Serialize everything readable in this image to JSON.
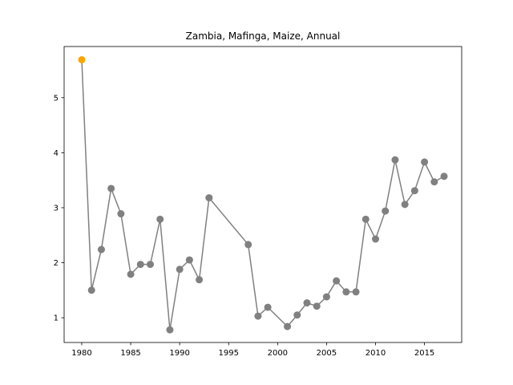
{
  "chart_data": {
    "type": "line",
    "title": "Zambia, Mafinga, Maize, Annual",
    "xlabel": "",
    "ylabel": "",
    "xlim": [
      1978.2,
      2018.8
    ],
    "ylim": [
      0.55,
      5.93
    ],
    "xticks": [
      1980,
      1985,
      1990,
      1995,
      2000,
      2005,
      2010,
      2015
    ],
    "yticks": [
      1,
      2,
      3,
      4,
      5
    ],
    "grid": false,
    "series": [
      {
        "color": "#808080",
        "x": [
          1980,
          1981,
          1982,
          1983,
          1984,
          1985,
          1986,
          1987,
          1988,
          1989,
          1990,
          1991,
          1992,
          1993,
          1997,
          1998,
          1999,
          2001,
          2002,
          2003,
          2004,
          2005,
          2006,
          2007,
          2008,
          2009,
          2010,
          2011,
          2012,
          2013,
          2014,
          2015,
          2016,
          2017
        ],
        "y": [
          5.69,
          1.5,
          2.24,
          3.35,
          2.89,
          1.79,
          1.97,
          1.97,
          2.79,
          0.78,
          1.88,
          2.05,
          1.69,
          3.18,
          2.33,
          1.03,
          1.19,
          0.84,
          1.05,
          1.27,
          1.21,
          1.38,
          1.67,
          1.47,
          1.47,
          2.79,
          2.43,
          2.94,
          3.87,
          3.06,
          3.31,
          3.83,
          3.47,
          3.57
        ]
      }
    ],
    "highlight": {
      "x": 1980,
      "y": 5.69,
      "color": "#ffa500"
    }
  }
}
